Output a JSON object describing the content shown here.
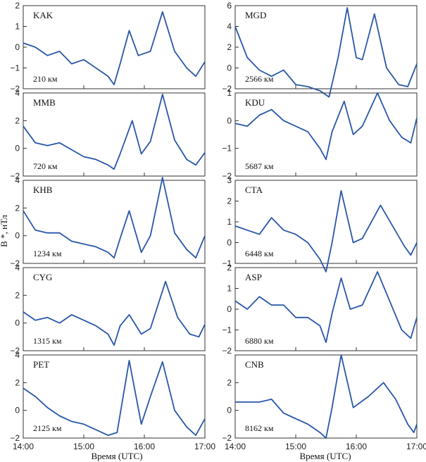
{
  "figure": {
    "ylabel": "B *, нТл",
    "xlabel": "Время (UTC)"
  },
  "chart_data": [
    {
      "type": "line",
      "station": "KAK",
      "distance": "210 км",
      "ylim": [
        -2,
        2
      ],
      "yticks": [
        -2,
        -1,
        0,
        1,
        2
      ],
      "xticks": [
        "14:00",
        "15:00",
        "16:00",
        "17:00"
      ],
      "x": [
        14.0,
        14.2,
        14.4,
        14.6,
        14.8,
        15.0,
        15.2,
        15.4,
        15.5,
        15.6,
        15.75,
        15.9,
        16.1,
        16.3,
        16.5,
        16.7,
        16.85,
        17.0
      ],
      "y": [
        0.2,
        0.0,
        -0.4,
        -0.2,
        -0.8,
        -0.6,
        -1.0,
        -1.4,
        -1.8,
        -0.8,
        0.8,
        -0.4,
        -0.2,
        1.7,
        -0.2,
        -1.0,
        -1.4,
        -0.7
      ]
    },
    {
      "type": "line",
      "station": "MGD",
      "distance": "2566 км",
      "ylim": [
        -2,
        6
      ],
      "yticks": [
        -2,
        0,
        2,
        4,
        6
      ],
      "xticks": [
        "14:00",
        "15:00",
        "16:00",
        "17:00"
      ],
      "x": [
        14.0,
        14.2,
        14.4,
        14.6,
        14.8,
        15.0,
        15.2,
        15.4,
        15.55,
        15.7,
        15.85,
        16.0,
        16.1,
        16.3,
        16.5,
        16.7,
        16.85,
        17.0
      ],
      "y": [
        4.0,
        1.0,
        -0.2,
        -0.8,
        -0.2,
        -1.6,
        -1.8,
        -2.2,
        -2.8,
        1.0,
        5.8,
        1.0,
        0.8,
        5.2,
        0.0,
        -1.6,
        -1.8,
        0.4
      ]
    },
    {
      "type": "line",
      "station": "MMB",
      "distance": "720 км",
      "ylim": [
        -2,
        4
      ],
      "yticks": [
        -2,
        0,
        2,
        4
      ],
      "xticks": [
        "14:00",
        "15:00",
        "16:00",
        "17:00"
      ],
      "x": [
        14.0,
        14.2,
        14.4,
        14.6,
        14.8,
        15.0,
        15.2,
        15.4,
        15.5,
        15.6,
        15.8,
        15.95,
        16.1,
        16.3,
        16.5,
        16.7,
        16.85,
        17.0
      ],
      "y": [
        1.6,
        0.4,
        0.2,
        0.4,
        -0.1,
        -0.6,
        -0.8,
        -1.2,
        -1.5,
        -0.4,
        2.0,
        -0.4,
        0.5,
        3.9,
        0.6,
        -0.8,
        -1.2,
        -0.3
      ]
    },
    {
      "type": "line",
      "station": "KDU",
      "distance": "5687 км",
      "ylim": [
        -2,
        1
      ],
      "yticks": [
        -2,
        -1,
        0,
        1
      ],
      "xticks": [
        "14:00",
        "15:00",
        "16:00",
        "17:00"
      ],
      "x": [
        14.0,
        14.2,
        14.4,
        14.6,
        14.8,
        15.0,
        15.2,
        15.4,
        15.5,
        15.6,
        15.8,
        15.95,
        16.1,
        16.35,
        16.55,
        16.75,
        16.9,
        17.0
      ],
      "y": [
        -0.1,
        -0.2,
        0.2,
        0.4,
        0.0,
        -0.2,
        -0.4,
        -1.0,
        -1.4,
        -0.4,
        0.7,
        -0.5,
        -0.2,
        1.0,
        0.0,
        -0.6,
        -0.8,
        0.1
      ]
    },
    {
      "type": "line",
      "station": "KHB",
      "distance": "1234 км",
      "ylim": [
        -2,
        4
      ],
      "yticks": [
        -2,
        0,
        2,
        4
      ],
      "xticks": [
        "14:00",
        "15:00",
        "16:00",
        "17:00"
      ],
      "x": [
        14.0,
        14.2,
        14.4,
        14.6,
        14.8,
        15.0,
        15.2,
        15.4,
        15.5,
        15.6,
        15.75,
        15.95,
        16.1,
        16.3,
        16.5,
        16.7,
        16.85,
        17.0
      ],
      "y": [
        1.8,
        0.4,
        0.2,
        0.2,
        -0.4,
        -0.6,
        -0.8,
        -1.2,
        -1.6,
        -0.2,
        1.8,
        -1.2,
        0.0,
        4.2,
        0.2,
        -1.0,
        -1.6,
        0.0
      ]
    },
    {
      "type": "line",
      "station": "CTA",
      "distance": "6448 км",
      "ylim": [
        -1,
        3
      ],
      "yticks": [
        -1,
        0,
        1,
        2,
        3
      ],
      "xticks": [
        "14:00",
        "15:00",
        "16:00",
        "17:00"
      ],
      "x": [
        14.0,
        14.2,
        14.4,
        14.6,
        14.8,
        15.0,
        15.2,
        15.4,
        15.5,
        15.6,
        15.75,
        15.95,
        16.1,
        16.4,
        16.6,
        16.8,
        16.9,
        17.0
      ],
      "y": [
        0.8,
        0.6,
        0.4,
        1.2,
        0.6,
        0.4,
        0.0,
        -0.8,
        -1.4,
        0.0,
        2.5,
        0.0,
        0.2,
        1.8,
        0.8,
        -0.2,
        -0.6,
        0.0
      ]
    },
    {
      "type": "line",
      "station": "CYG",
      "distance": "1315 км",
      "ylim": [
        -2,
        4
      ],
      "yticks": [
        -2,
        0,
        2,
        4
      ],
      "xticks": [
        "14:00",
        "15:00",
        "16:00",
        "17:00"
      ],
      "x": [
        14.0,
        14.2,
        14.4,
        14.6,
        14.8,
        15.0,
        15.2,
        15.4,
        15.5,
        15.6,
        15.75,
        15.95,
        16.1,
        16.35,
        16.55,
        16.75,
        16.9,
        17.0
      ],
      "y": [
        0.8,
        0.2,
        0.4,
        0.0,
        0.6,
        0.2,
        -0.2,
        -0.8,
        -1.6,
        -0.2,
        0.6,
        -0.8,
        -0.4,
        3.0,
        0.4,
        -0.8,
        -1.0,
        -0.1
      ]
    },
    {
      "type": "line",
      "station": "ASP",
      "distance": "6880 км",
      "ylim": [
        -2,
        2
      ],
      "yticks": [
        -2,
        -1,
        0,
        1,
        2
      ],
      "xticks": [
        "14:00",
        "15:00",
        "16:00",
        "17:00"
      ],
      "x": [
        14.0,
        14.2,
        14.4,
        14.6,
        14.8,
        15.0,
        15.2,
        15.4,
        15.5,
        15.6,
        15.75,
        15.9,
        16.1,
        16.35,
        16.55,
        16.75,
        16.9,
        17.0
      ],
      "y": [
        0.4,
        0.0,
        0.6,
        0.2,
        0.2,
        -0.4,
        -0.4,
        -0.8,
        -1.6,
        -0.2,
        1.5,
        0.0,
        0.2,
        1.8,
        0.4,
        -1.0,
        -1.4,
        -0.4
      ]
    },
    {
      "type": "line",
      "station": "PET",
      "distance": "2125 км",
      "ylim": [
        -2,
        4
      ],
      "yticks": [
        -2,
        0,
        2,
        4
      ],
      "xticks": [
        "14:00",
        "15:00",
        "16:00",
        "17:00"
      ],
      "x": [
        14.0,
        14.2,
        14.4,
        14.6,
        14.8,
        15.0,
        15.2,
        15.4,
        15.55,
        15.75,
        15.95,
        16.1,
        16.3,
        16.5,
        16.7,
        16.85,
        17.0
      ],
      "y": [
        1.6,
        1.0,
        0.2,
        -0.4,
        -0.8,
        -1.0,
        -1.4,
        -1.8,
        -1.6,
        3.6,
        -1.0,
        1.0,
        3.5,
        0.0,
        -1.2,
        -1.8,
        -0.6
      ]
    },
    {
      "type": "line",
      "station": "CNB",
      "distance": "8162 км",
      "ylim": [
        -2,
        4
      ],
      "yticks": [
        -2,
        0,
        2
      ],
      "xticks": [
        "14:00",
        "15:00",
        "16:00",
        "17:00"
      ],
      "x": [
        14.0,
        14.2,
        14.4,
        14.6,
        14.8,
        15.0,
        15.2,
        15.4,
        15.5,
        15.6,
        15.75,
        15.95,
        16.2,
        16.45,
        16.65,
        16.85,
        16.95,
        17.0
      ],
      "y": [
        0.6,
        0.6,
        0.6,
        0.8,
        -0.2,
        -0.6,
        -1.0,
        -1.6,
        -2.0,
        0.2,
        4.0,
        0.2,
        1.0,
        2.0,
        0.8,
        -1.0,
        -1.6,
        -1.0
      ]
    }
  ]
}
